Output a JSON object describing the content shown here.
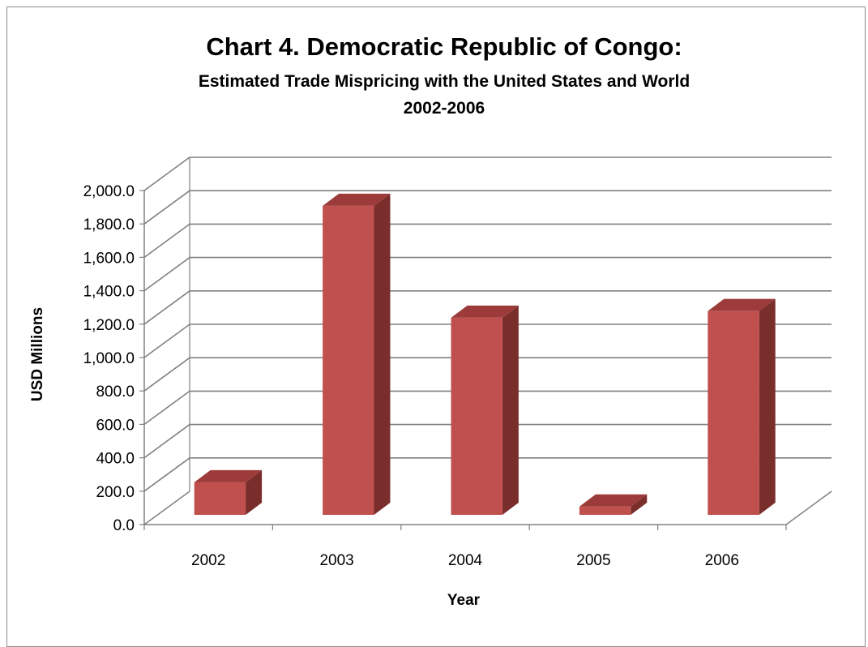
{
  "chart_data": {
    "type": "bar",
    "title": "Chart 4. Democratic Republic of Congo:",
    "subtitle_line1": "Estimated Trade Mispricing with the United States and World",
    "subtitle_line2": "2002-2006",
    "xlabel": "Year",
    "ylabel": "USD Millions",
    "categories": [
      "2002",
      "2003",
      "2004",
      "2005",
      "2006"
    ],
    "values": [
      195,
      1850,
      1180,
      50,
      1220
    ],
    "ylim": [
      0,
      2000
    ],
    "y_ticks": [
      "0.0",
      "200.0",
      "400.0",
      "600.0",
      "800.0",
      "1,000.0",
      "1,200.0",
      "1,400.0",
      "1,600.0",
      "1,800.0",
      "2,000.0"
    ],
    "grid": true,
    "legend": "none",
    "style": "3d-column",
    "colors": {
      "bar_front": "#c0504d",
      "bar_top": "#9c3b39",
      "bar_side": "#7a2e2c",
      "gridline": "#808080"
    }
  }
}
